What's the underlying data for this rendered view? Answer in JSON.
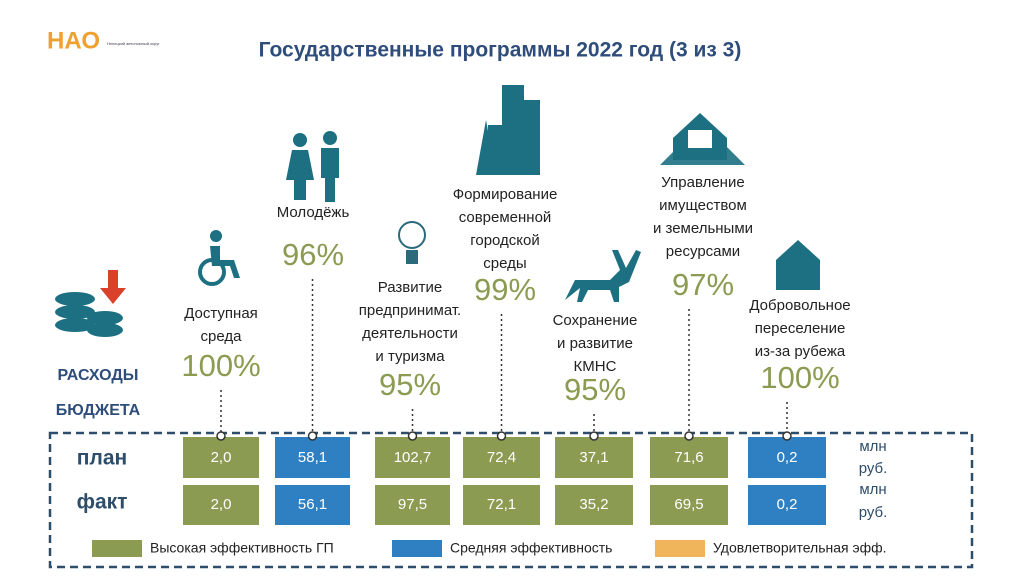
{
  "logo": {
    "text": "НАО",
    "subtitle": "Ненецкий автономный округ"
  },
  "title": "Государственные программы 2022 год (3 из 3)",
  "budget_label": [
    "РАСХОДЫ",
    "БЮДЖЕТА"
  ],
  "row_labels": [
    "план",
    "факт"
  ],
  "units": [
    [
      "млн",
      "руб."
    ],
    [
      "млн",
      "руб."
    ]
  ],
  "programs": [
    {
      "label": [
        "Доступная",
        "среда"
      ],
      "percent": "100%",
      "plan": "2,0",
      "fact": "2,0",
      "color": "#8c9b52"
    },
    {
      "label": [
        "Молодёжь"
      ],
      "percent": "96%",
      "plan": "58,1",
      "fact": "56,1",
      "color": "#2f80c3"
    },
    {
      "label": [
        "Развитие",
        "предпринимат.",
        "деятельности",
        "и туризма"
      ],
      "percent": "95%",
      "plan": "102,7",
      "fact": "97,5",
      "color": "#8c9b52"
    },
    {
      "label": [
        "Формирование",
        "современной",
        "городской",
        "среды"
      ],
      "percent": "99%",
      "plan": "72,4",
      "fact": "72,1",
      "color": "#8c9b52"
    },
    {
      "label": [
        "Сохранение",
        "и развитие",
        "КМНС"
      ],
      "percent": "95%",
      "plan": "37,1",
      "fact": "35,2",
      "color": "#8c9b52"
    },
    {
      "label": [
        "Управление",
        "имуществом",
        "и земельными",
        "ресурсами"
      ],
      "percent": "97%",
      "plan": "71,6",
      "fact": "69,5",
      "color": "#8c9b52"
    },
    {
      "label": [
        "Добровольное",
        "переселение",
        "из-за рубежа"
      ],
      "percent": "100%",
      "plan": "0,2",
      "fact": "0,2",
      "color": "#2f80c3"
    }
  ],
  "legend": [
    {
      "label": "Высокая эффективность ГП",
      "color": "#8c9b52"
    },
    {
      "label": "Средняя эффективность",
      "color": "#2f80c3"
    },
    {
      "label": "Удовлетворительная эфф.",
      "color": "#f0b45a"
    }
  ]
}
